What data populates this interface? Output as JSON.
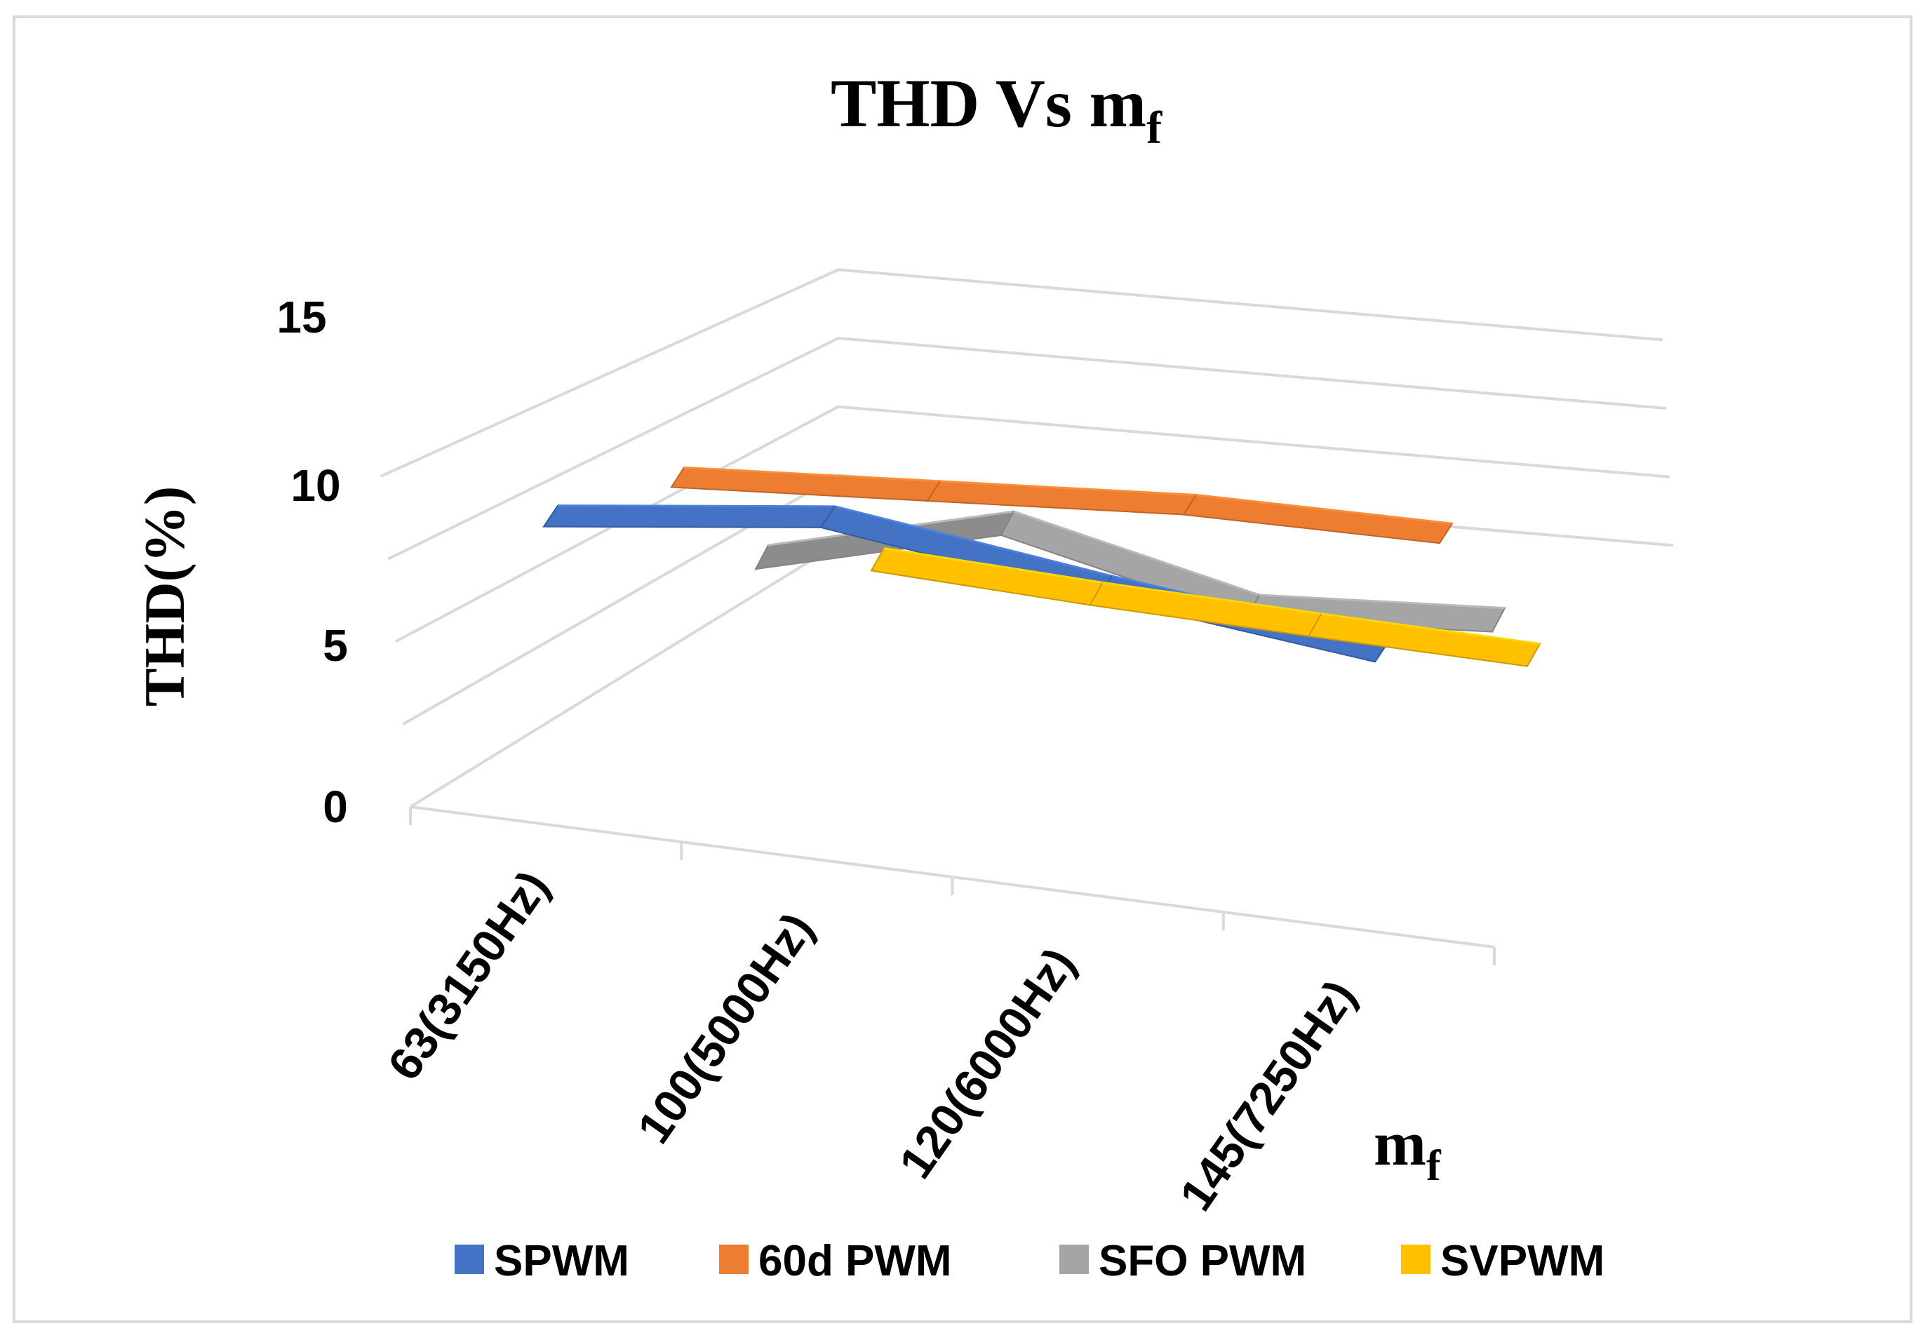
{
  "chart_data": {
    "type": "line",
    "variant": "3d-ribbon",
    "title": "THD Vs m",
    "title_subscript": "f",
    "ylabel": "THD(%)",
    "xlabel": "m",
    "xlabel_subscript": "f",
    "ylim": [
      0,
      15
    ],
    "yticks": [
      "0",
      "5",
      "10",
      "15"
    ],
    "categories": [
      "63(3150Hz)",
      "100(5000Hz)",
      "120(6000Hz)",
      "145(7250Hz)"
    ],
    "grid": true,
    "legend_position": "bottom",
    "series": [
      {
        "name": "SPWM",
        "color": "#4472c4",
        "values": [
          8.8,
          11.6,
          8.7,
          6.2
        ]
      },
      {
        "name": "60d PWM",
        "color": "#ed7d31",
        "values": [
          8.9,
          9.0,
          9.1,
          8.0
        ]
      },
      {
        "name": "SFO PWM",
        "color": "#a5a5a5",
        "values": [
          8.4,
          12.9,
          7.9,
          8.6
        ]
      },
      {
        "name": "SVPWM",
        "color": "#ffc000",
        "values": [
          7.7,
          6.9,
          6.4,
          6.0
        ]
      }
    ]
  }
}
